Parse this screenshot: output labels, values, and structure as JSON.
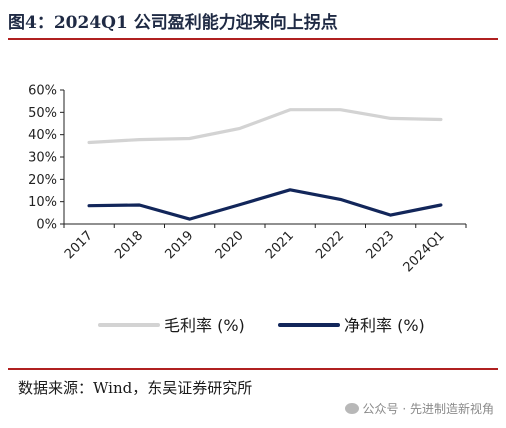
{
  "figure": {
    "title": "图4：2024Q1 公司盈利能力迎来向上拐点",
    "source": "数据来源：Wind，东吴证券研究所",
    "watermark": "公众号 · 先进制造新视角"
  },
  "chart_data": {
    "type": "line",
    "title": "",
    "xlabel": "",
    "ylabel": "",
    "categories": [
      "2017",
      "2018",
      "2019",
      "2020",
      "2021",
      "2022",
      "2023",
      "2024Q1"
    ],
    "y_ticks": [
      "0%",
      "10%",
      "20%",
      "30%",
      "40%",
      "50%",
      "60%"
    ],
    "ylim": [
      0,
      60
    ],
    "grid": false,
    "legend_position": "bottom",
    "series": [
      {
        "name": "毛利率 (%)",
        "color": "#d3d3d3",
        "values": [
          36.5,
          37.8,
          38.3,
          42.8,
          51.2,
          51.2,
          47.3,
          46.8
        ]
      },
      {
        "name": "净利率 (%)",
        "color": "#12265a",
        "values": [
          8.2,
          8.5,
          2.2,
          8.7,
          15.3,
          11.0,
          4.0,
          8.5
        ]
      }
    ]
  }
}
